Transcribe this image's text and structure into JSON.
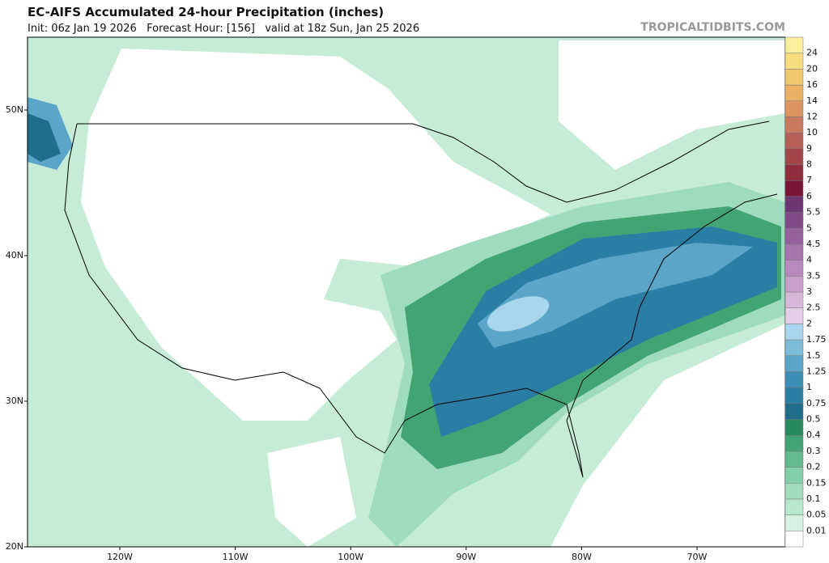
{
  "header": {
    "title": "EC-AIFS Accumulated 24-hour Precipitation (inches)",
    "subtitle": "Init: 06z Jan 19 2026   Forecast Hour: [156]   valid at 18z Sun, Jan 25 2026",
    "watermark": "TROPICALTIDBITS.COM"
  },
  "colorbar": {
    "labels": [
      "0.01",
      "0.05",
      "0.1",
      "0.15",
      "0.2",
      "0.3",
      "0.4",
      "0.5",
      "0.75",
      "1",
      "1.25",
      "1.5",
      "1.75",
      "2",
      "2.5",
      "3",
      "3.5",
      "4",
      "4.5",
      "5",
      "5.5",
      "6",
      "7",
      "8",
      "9",
      "10",
      "12",
      "14",
      "16",
      "20",
      "24"
    ],
    "colors": [
      "#ffffff",
      "#d5f2e2",
      "#b8e7cf",
      "#9edcbd",
      "#83cfa7",
      "#63bb8c",
      "#43a473",
      "#268a5c",
      "#1f6e8c",
      "#2b7ea3",
      "#3c8eb6",
      "#5ba5c8",
      "#7dbcd9",
      "#a7d6ee",
      "#e4cde6",
      "#d8b6da",
      "#c9a0cc",
      "#b98abd",
      "#a874ad",
      "#97609d",
      "#834a8b",
      "#6e3574",
      "#7b1437",
      "#8f2d3d",
      "#a3464a",
      "#b65f57",
      "#c97a5e",
      "#dc9560",
      "#eab063",
      "#f2c86c",
      "#f7dd7e",
      "#fbee9c"
    ]
  },
  "map": {
    "lat_labels": [
      "50N",
      "40N",
      "30N",
      "20N"
    ],
    "lon_labels": [
      "120W",
      "110W",
      "100W",
      "90W",
      "80W",
      "70W"
    ]
  }
}
